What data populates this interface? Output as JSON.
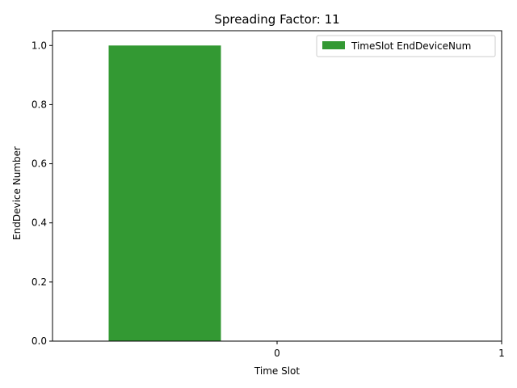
{
  "chart_data": {
    "type": "bar",
    "title": "Spreading Factor: 11",
    "xlabel": "Time Slot",
    "ylabel": "EndDevice Number",
    "x_ticks": [
      "0",
      "1"
    ],
    "x_range": [
      -1,
      1
    ],
    "y_ticks": [
      "0.0",
      "0.2",
      "0.4",
      "0.6",
      "0.8",
      "1.0"
    ],
    "ylim": [
      0,
      1.05
    ],
    "series": [
      {
        "name": "TimeSlot EndDeviceNum",
        "color": "#339933",
        "bars": [
          {
            "x": -0.5,
            "value": 1.0
          }
        ],
        "bar_width": 0.5
      }
    ],
    "legend_position": "top-right",
    "grid": false
  }
}
